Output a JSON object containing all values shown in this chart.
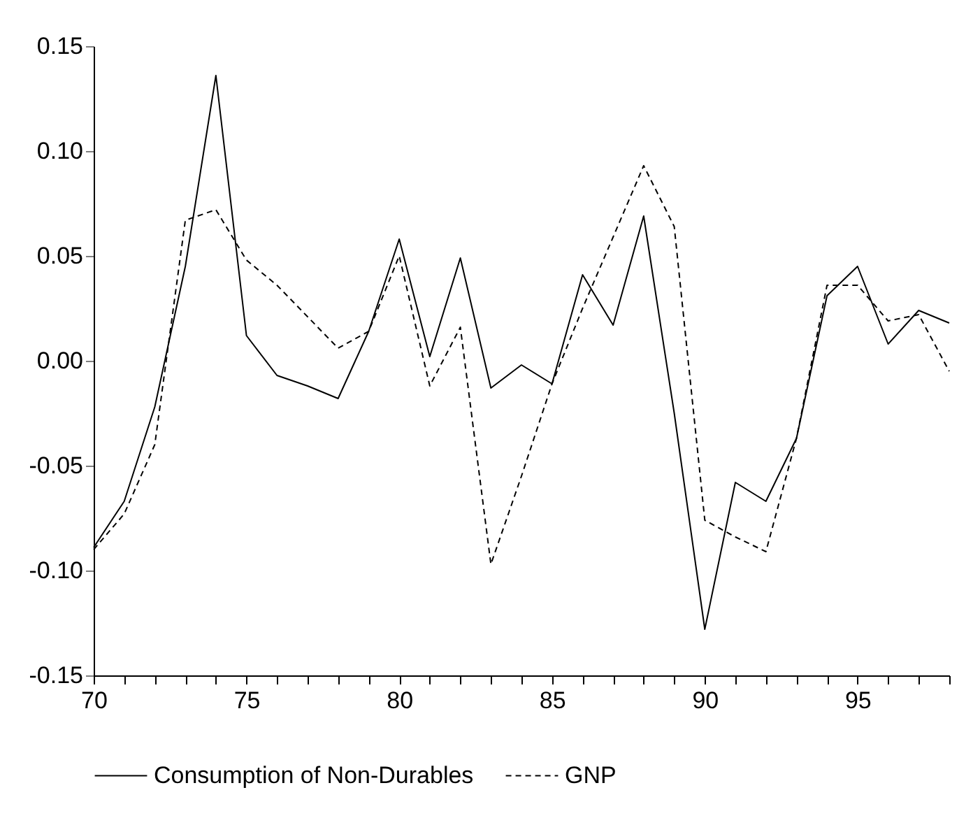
{
  "chart_data": {
    "type": "line",
    "x": [
      70,
      71,
      72,
      73,
      74,
      75,
      76,
      77,
      78,
      79,
      80,
      81,
      82,
      83,
      84,
      85,
      86,
      87,
      88,
      89,
      90,
      91,
      92,
      93,
      94,
      95,
      96,
      97,
      98
    ],
    "series": [
      {
        "name": "Consumption of Non-Durables",
        "color": "#000000",
        "line_style": "solid",
        "values": [
          -0.089,
          -0.067,
          -0.022,
          0.045,
          0.136,
          0.012,
          -0.007,
          -0.012,
          -0.018,
          0.014,
          0.058,
          0.002,
          0.049,
          -0.013,
          -0.002,
          -0.011,
          0.041,
          0.017,
          0.069,
          -0.025,
          -0.128,
          -0.058,
          -0.067,
          -0.037,
          0.031,
          0.045,
          0.008,
          0.024,
          0.018
        ]
      },
      {
        "name": "GNP",
        "color": "#000000",
        "line_style": "dashed",
        "values": [
          -0.09,
          -0.073,
          -0.04,
          0.067,
          0.072,
          0.048,
          0.036,
          0.021,
          0.006,
          0.014,
          0.05,
          -0.012,
          0.016,
          -0.097,
          -0.055,
          -0.011,
          0.025,
          0.059,
          0.093,
          0.064,
          -0.076,
          -0.084,
          -0.091,
          -0.037,
          0.036,
          0.036,
          0.019,
          0.022,
          -0.005
        ]
      }
    ],
    "xlim": [
      70,
      98
    ],
    "xticks": [
      70,
      {
        "value": 71,
        "label": null
      },
      {
        "value": 72,
        "label": null
      },
      {
        "value": 73,
        "label": null
      },
      {
        "value": 74,
        "label": null
      },
      75,
      {
        "value": 76,
        "label": null
      },
      {
        "value": 77,
        "label": null
      },
      {
        "value": 78,
        "label": null
      },
      {
        "value": 79,
        "label": null
      },
      80,
      {
        "value": 81,
        "label": null
      },
      {
        "value": 82,
        "label": null
      },
      {
        "value": 83,
        "label": null
      },
      {
        "value": 84,
        "label": null
      },
      85,
      {
        "value": 86,
        "label": null
      },
      {
        "value": 87,
        "label": null
      },
      {
        "value": 88,
        "label": null
      },
      {
        "value": 89,
        "label": null
      },
      90,
      {
        "value": 91,
        "label": null
      },
      {
        "value": 92,
        "label": null
      },
      {
        "value": 93,
        "label": null
      },
      {
        "value": 94,
        "label": null
      },
      95,
      {
        "value": 96,
        "label": null
      },
      {
        "value": 97,
        "label": null
      },
      {
        "value": 98,
        "label": null
      }
    ],
    "ylim": [
      -0.15,
      0.15
    ],
    "yticks": [
      {
        "value": -0.15,
        "label": "-0.15"
      },
      {
        "value": -0.1,
        "label": "-0.10"
      },
      {
        "value": -0.05,
        "label": "-0.05"
      },
      {
        "value": 0,
        "label": "0.00"
      },
      {
        "value": 0.05,
        "label": "0.05"
      },
      {
        "value": 0.1,
        "label": "0.10"
      },
      {
        "value": 0.15,
        "label": "0.15"
      }
    ],
    "legend": "bottom"
  }
}
